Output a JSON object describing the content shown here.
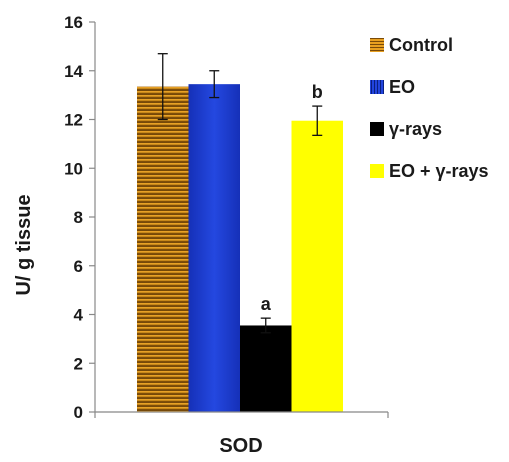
{
  "chart_data": {
    "type": "bar",
    "title": "",
    "xlabel": "SOD",
    "ylabel": "U/ g tissue",
    "ylim": [
      0,
      16
    ],
    "yticks": [
      0,
      2,
      4,
      6,
      8,
      10,
      12,
      14,
      16
    ],
    "grid": false,
    "legend_position": "right",
    "categories": [
      "SOD"
    ],
    "series": [
      {
        "name": "Control",
        "values": [
          13.35
        ],
        "error": [
          1.35
        ],
        "label": "",
        "color": "#e8a020",
        "fill": "striped-gradient"
      },
      {
        "name": "EO",
        "values": [
          13.45
        ],
        "error": [
          0.55
        ],
        "label": "",
        "color": "#1f3fd0",
        "fill": "striped-gradient"
      },
      {
        "name": "γ-rays",
        "values": [
          3.55
        ],
        "error": [
          0.3
        ],
        "label": "a",
        "color": "#000000",
        "fill": "solid"
      },
      {
        "name": "EO + γ-rays",
        "values": [
          11.95
        ],
        "error": [
          0.6
        ],
        "label": "b",
        "color": "#ffff00",
        "fill": "solid"
      }
    ]
  }
}
